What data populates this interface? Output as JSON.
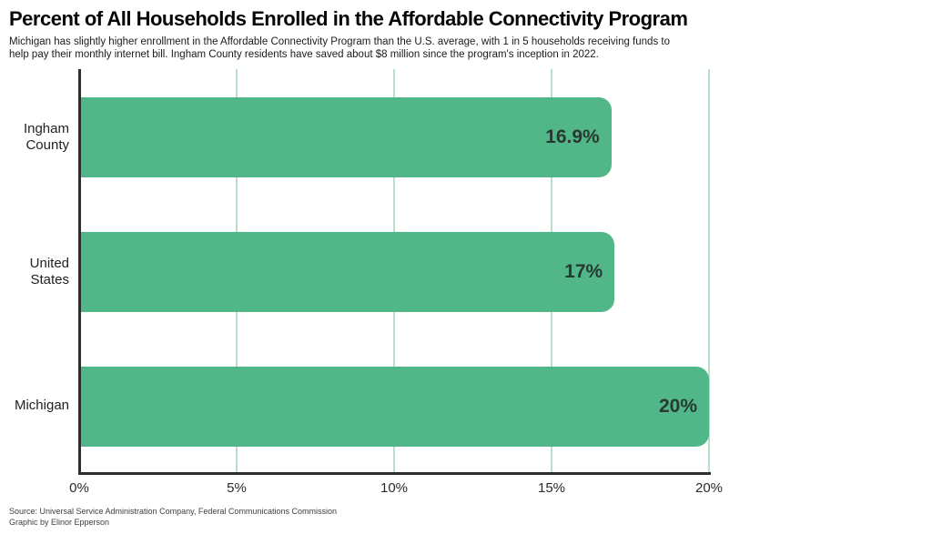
{
  "chart_data": {
    "type": "bar",
    "orientation": "horizontal",
    "title": "Percent of All Households Enrolled in the Affordable Connectivity Program",
    "subtitle": "Michigan has slightly higher enrollment in the Affordable Connectivity Program than the U.S. average, with 1 in 5 households receiving funds to\nhelp pay their monthly internet bill. Ingham County residents have saved about $8 million since the program's inception in 2022.",
    "categories": [
      "Ingham County",
      "United States",
      "Michigan"
    ],
    "values": [
      16.9,
      17,
      20
    ],
    "value_labels": [
      "16.9%",
      "17%",
      "20%"
    ],
    "x_tick_values": [
      0,
      5,
      10,
      15,
      20
    ],
    "x_tick_labels": [
      "0%",
      "5%",
      "10%",
      "15%",
      "20%"
    ],
    "xlim": [
      0,
      20
    ],
    "xlabel": "",
    "ylabel": "",
    "grid": "vertical",
    "legend": "none",
    "colors": {
      "bar": "#52b788",
      "gridline": "#b9dfc9",
      "axis": "#2e2e2e",
      "value_label": "#273931"
    }
  },
  "footer": {
    "source": "Source: Universal Service Administration Company, Federal Communications Commission",
    "credit": "Graphic by Elinor Epperson"
  }
}
